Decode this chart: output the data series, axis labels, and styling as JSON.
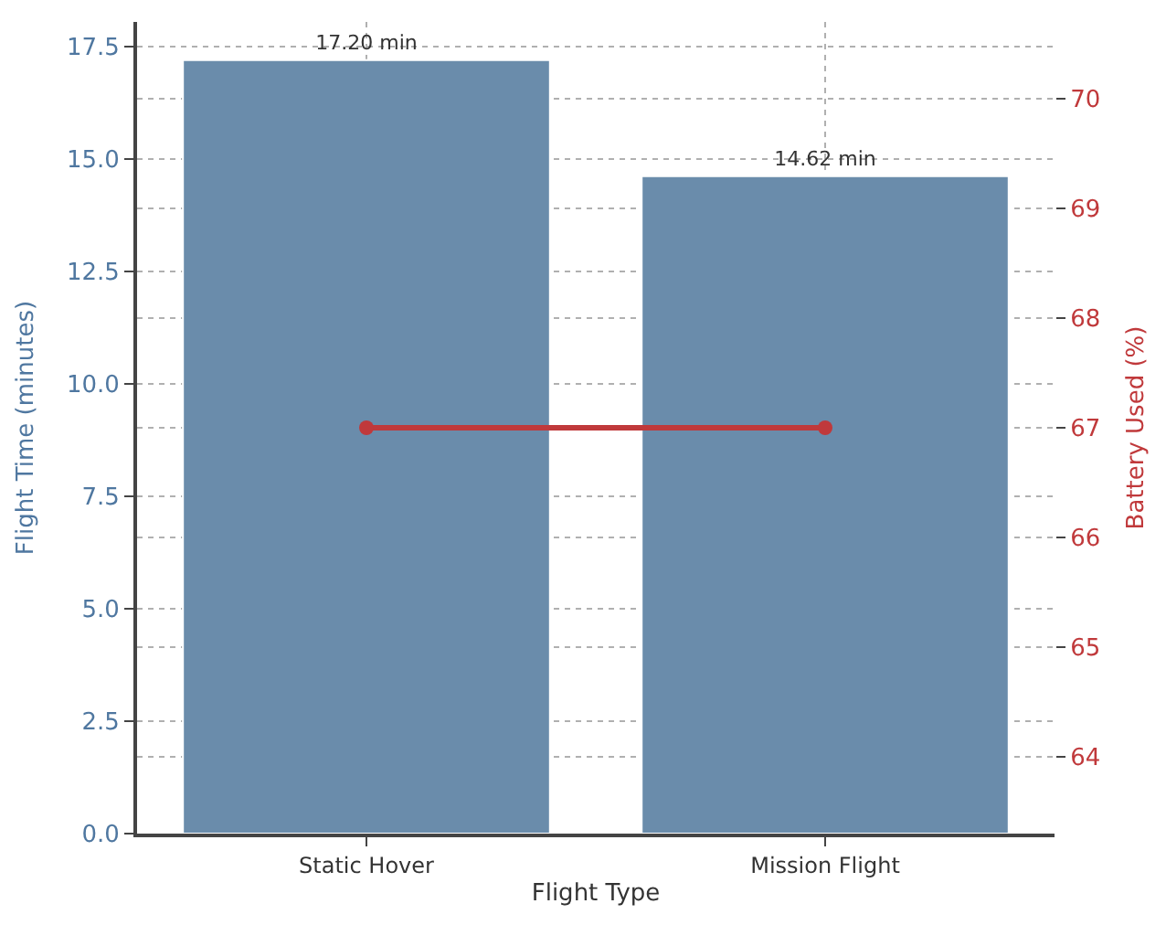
{
  "chart_data": {
    "type": "bar",
    "xlabel": "Flight Type",
    "ylabel": "Flight Time (minutes)",
    "y2label": "Battery Used (%)",
    "categories": [
      "Static Hover",
      "Mission Flight"
    ],
    "series": [
      {
        "color": "#6a8cab",
        "values": [
          17.2,
          14.62
        ],
        "value_labels": [
          "17.20 min",
          "14.62 min"
        ]
      },
      {
        "type": "line",
        "axis": "y2",
        "color": "#c0393b",
        "values": [
          67,
          67
        ],
        "marker": "circle"
      }
    ],
    "ylim": [
      0,
      18.05
    ],
    "yticks": [
      {
        "value": 0,
        "label": "0.0"
      },
      {
        "value": 2.5,
        "label": "2.5"
      },
      {
        "value": 5,
        "label": "5.0"
      },
      {
        "value": 7.5,
        "label": "7.5"
      },
      {
        "value": 10,
        "label": "10.0"
      },
      {
        "value": 12.5,
        "label": "12.5"
      },
      {
        "value": 15,
        "label": "15.0"
      },
      {
        "value": 17.5,
        "label": "17.5"
      }
    ],
    "y2lim": [
      63.3,
      70.7
    ],
    "y2ticks": [
      64,
      65,
      66,
      67,
      68,
      69,
      70
    ],
    "grid": true
  }
}
